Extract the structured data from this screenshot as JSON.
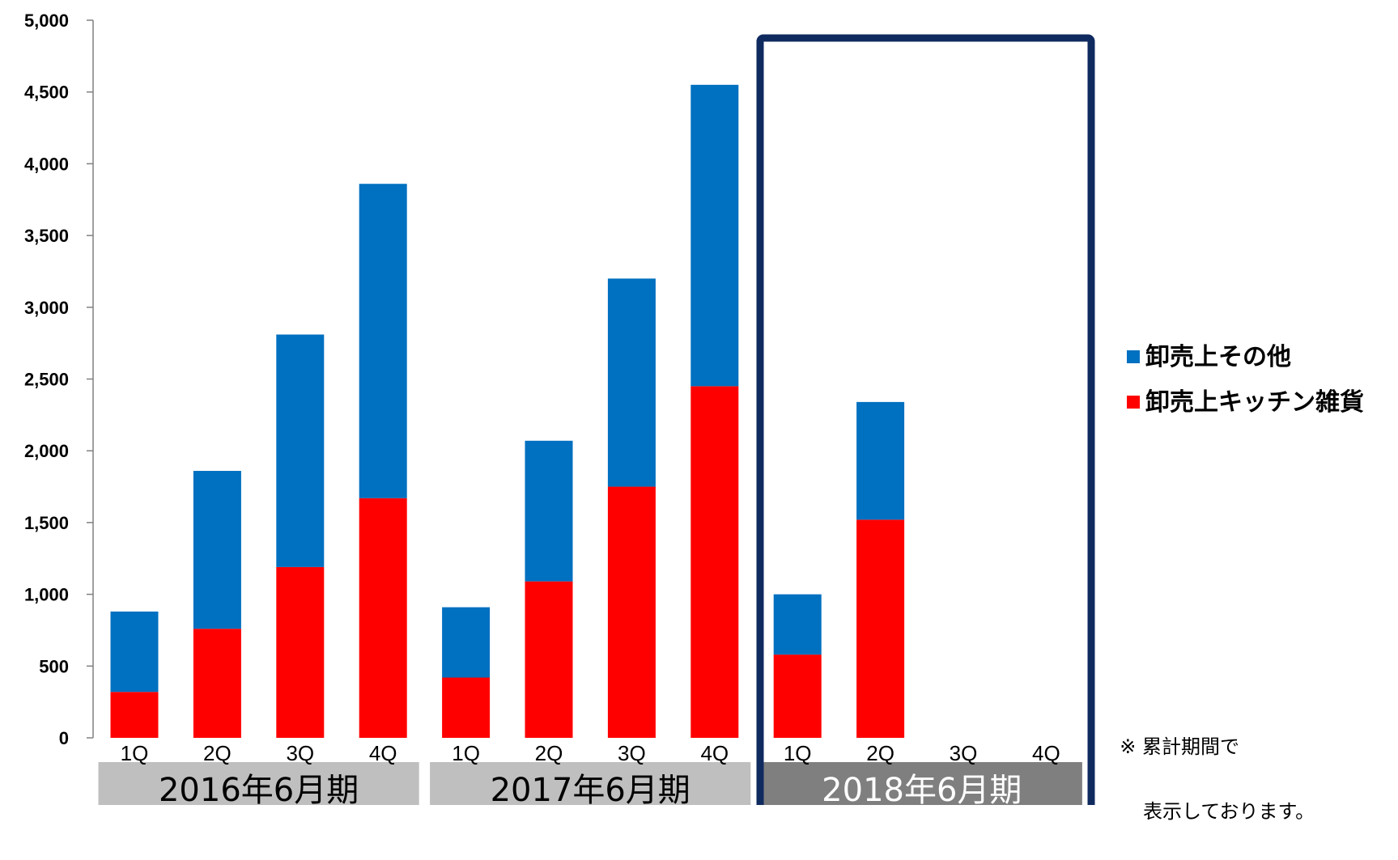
{
  "chart_data": {
    "type": "bar",
    "stacked": true,
    "categories": [
      "1Q",
      "2Q",
      "3Q",
      "4Q",
      "1Q",
      "2Q",
      "3Q",
      "4Q",
      "1Q",
      "2Q",
      "3Q",
      "4Q"
    ],
    "periods": [
      {
        "label": "2016年6月期",
        "quarters": [
          "1Q",
          "2Q",
          "3Q",
          "4Q"
        ]
      },
      {
        "label": "2017年6月期",
        "quarters": [
          "1Q",
          "2Q",
          "3Q",
          "4Q"
        ]
      },
      {
        "label": "2018年6月期",
        "quarters": [
          "1Q",
          "2Q",
          "3Q",
          "4Q"
        ],
        "highlighted": true
      }
    ],
    "series": [
      {
        "name": "卸売上キッチン雑貨",
        "color": "#FF0000",
        "values": [
          320,
          760,
          1190,
          1670,
          420,
          1090,
          1750,
          2450,
          580,
          1520,
          null,
          null
        ]
      },
      {
        "name": "卸売上その他",
        "color": "#0070C0",
        "values": [
          560,
          1100,
          1620,
          2190,
          490,
          980,
          1450,
          2100,
          420,
          820,
          null,
          null
        ]
      }
    ],
    "ylim": [
      0,
      5000
    ],
    "yticks": [
      "0",
      "500",
      "1,000",
      "1,500",
      "2,000",
      "2,500",
      "3,000",
      "3,500",
      "4,000",
      "4,500",
      "5,000"
    ],
    "grid": false,
    "legend_position": "right"
  },
  "note": {
    "line1": "※ 累計期間で",
    "line2": "表示しております。"
  },
  "colors": {
    "highlight_box": "#0F2A5F",
    "period_label_bg": "#BFBFBF",
    "period_label_bg_highlight": "#7F7F7F",
    "period_label_text": "#000000",
    "period_label_text_highlight": "#FFFFFF"
  }
}
